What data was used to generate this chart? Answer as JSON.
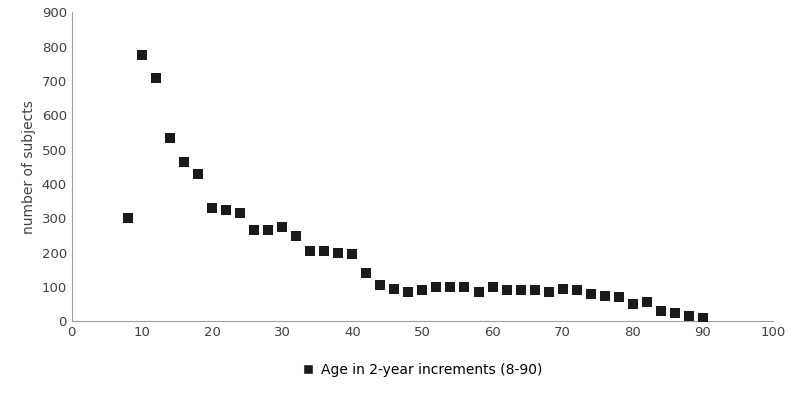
{
  "x": [
    8,
    10,
    12,
    14,
    16,
    18,
    20,
    22,
    24,
    26,
    28,
    30,
    32,
    34,
    36,
    38,
    40,
    42,
    44,
    46,
    48,
    50,
    52,
    54,
    56,
    58,
    60,
    62,
    64,
    66,
    68,
    70,
    72,
    74,
    76,
    78,
    80,
    82,
    84,
    86,
    88,
    90
  ],
  "y": [
    300,
    775,
    710,
    535,
    465,
    430,
    330,
    325,
    315,
    265,
    265,
    275,
    250,
    205,
    205,
    200,
    195,
    140,
    105,
    95,
    85,
    90,
    100,
    100,
    100,
    85,
    100,
    90,
    90,
    90,
    85,
    95,
    90,
    80,
    75,
    70,
    50,
    55,
    30,
    25,
    15,
    10
  ],
  "ylabel": "number of subjects",
  "xlim": [
    0,
    100
  ],
  "ylim": [
    0,
    900
  ],
  "xticks": [
    0,
    10,
    20,
    30,
    40,
    50,
    60,
    70,
    80,
    90,
    100
  ],
  "yticks": [
    0,
    100,
    200,
    300,
    400,
    500,
    600,
    700,
    800,
    900
  ],
  "marker_color": "#1a1a1a",
  "marker": "s",
  "marker_size": 55,
  "background_color": "#ffffff",
  "legend_label": "Age in 2-year increments (8-90)",
  "ylabel_fontsize": 10,
  "tick_fontsize": 9.5,
  "legend_fontsize": 10,
  "spine_color": "#a0a0a0"
}
